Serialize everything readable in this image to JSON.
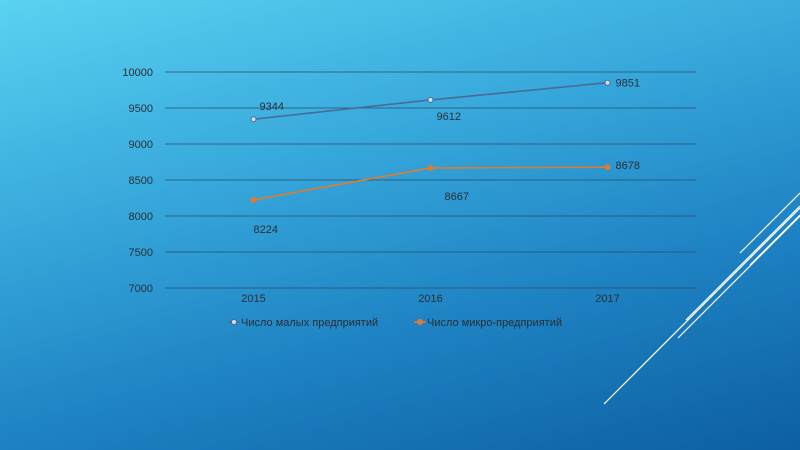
{
  "chart_data": {
    "type": "line",
    "categories": [
      "2015",
      "2016",
      "2017"
    ],
    "ylim": [
      7000,
      10000
    ],
    "yticks": [
      "7000",
      "7500",
      "8000",
      "8500",
      "9000",
      "9500",
      "10000"
    ],
    "grid": true,
    "legend_position": "bottom",
    "series": [
      {
        "name": "Число малых предприятий",
        "values": [
          9344,
          9612,
          9851
        ],
        "color": "#4a6a9a",
        "labels": [
          "9344",
          "9612",
          "9851"
        ]
      },
      {
        "name": "Число микро-предприятий",
        "values": [
          8224,
          8667,
          8678
        ],
        "color": "#e07a30",
        "labels": [
          "8224",
          "8667",
          "8678"
        ]
      }
    ]
  },
  "colors": {
    "background_top": "#5ad2f0",
    "background_bottom": "#0c5fa2",
    "text": "#2a2f36",
    "grid": "#2f4a66"
  }
}
